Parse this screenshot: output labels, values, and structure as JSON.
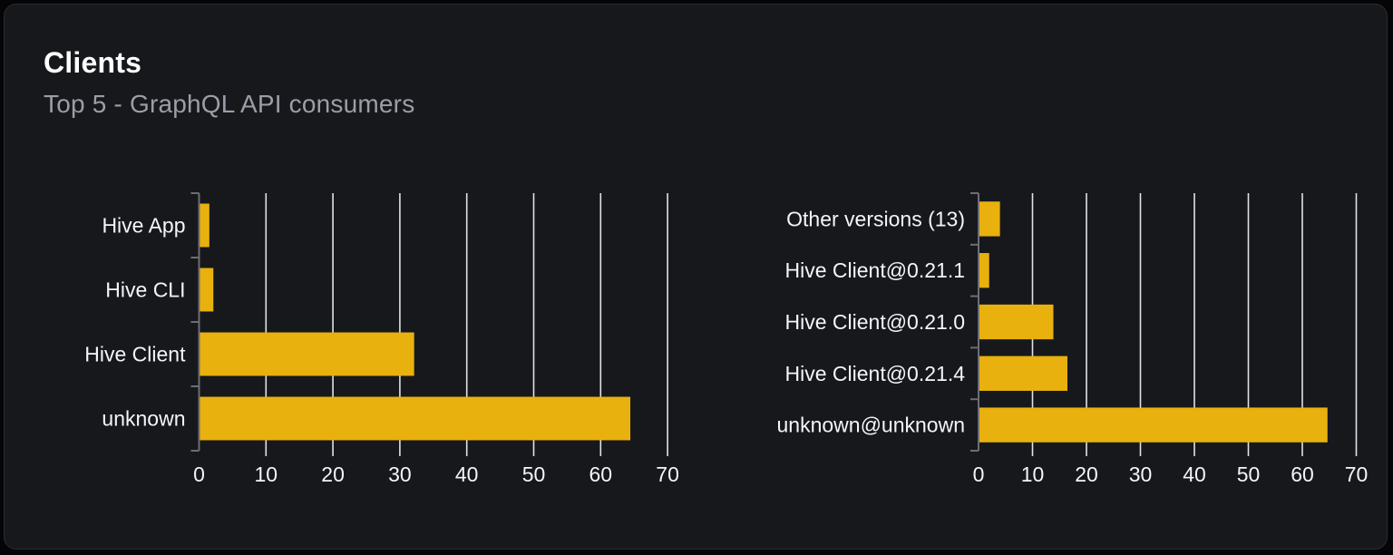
{
  "card": {
    "title": "Clients",
    "subtitle": "Top 5 - GraphQL API consumers"
  },
  "colors": {
    "page_bg": "#050507",
    "card_bg": "#17181c",
    "card_border": "#2b2c32",
    "title_text": "#ffffff",
    "subtitle_text": "#9b9ea6",
    "bar": "#e9b10e",
    "gridline": "#dfe2e8",
    "axis": "#6d6d74",
    "chart_text": "#f5f5f7"
  },
  "chart_data": [
    {
      "type": "bar",
      "orientation": "horizontal",
      "title": "",
      "category_order": "top-to-bottom",
      "categories": [
        "Hive App",
        "Hive CLI",
        "Hive Client",
        "unknown"
      ],
      "values": [
        1.4,
        2.0,
        32.0,
        64.3
      ],
      "xlabel": "",
      "ylabel": "",
      "xlim": [
        0,
        73
      ],
      "xticks": [
        0,
        10,
        20,
        30,
        40,
        50,
        60,
        70
      ],
      "grid": true,
      "legend": false
    },
    {
      "type": "bar",
      "orientation": "horizontal",
      "title": "",
      "category_order": "top-to-bottom",
      "categories": [
        "Other versions (13)",
        "Hive Client@0.21.1",
        "Hive Client@0.21.0",
        "Hive Client@0.21.4",
        "unknown@unknown"
      ],
      "values": [
        3.8,
        1.8,
        13.7,
        16.3,
        64.5
      ],
      "xlabel": "",
      "ylabel": "",
      "xlim": [
        0,
        73
      ],
      "xticks": [
        0,
        10,
        20,
        30,
        40,
        50,
        60,
        70
      ],
      "grid": true,
      "legend": false
    }
  ]
}
